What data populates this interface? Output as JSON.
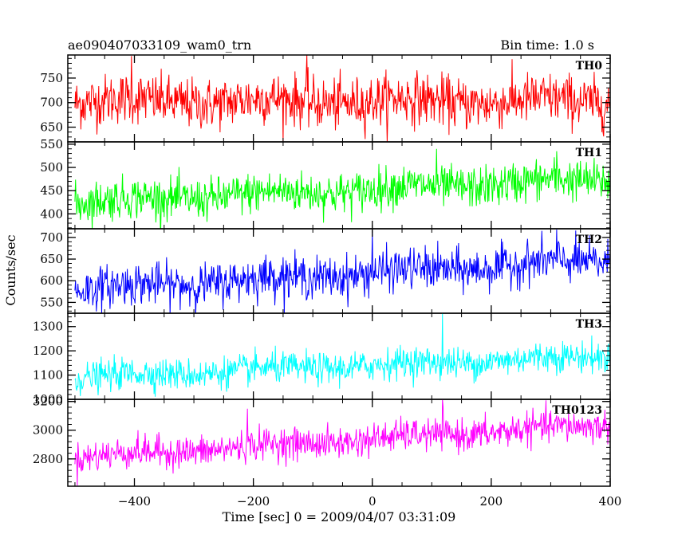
{
  "header": {
    "left_title": "ae090407033109_wam0_trn",
    "right_title": "Bin time: 1.0 s"
  },
  "chart_data": {
    "type": "line",
    "title": "ae090407033109_wam0_trn",
    "subtitle": "Bin time: 1.0 s",
    "xlabel": "Time [sec] 0 = 2009/04/07 03:31:09",
    "ylabel": "Counts/sec",
    "xlim": [
      -512,
      400
    ],
    "x_range_of_data": [
      -500,
      400
    ],
    "x_step": 1,
    "xticks": [
      -400,
      -200,
      0,
      200,
      400
    ],
    "xtick_labels": [
      "−400",
      "−200",
      "0",
      "200",
      "400"
    ],
    "grid": false,
    "panels": [
      {
        "name": "TH0",
        "color": "#ff0000",
        "ylim": [
          620,
          797
        ],
        "yticks": [
          650,
          700,
          750
        ],
        "ytick_labels": [
          "650",
          "700",
          "750"
        ],
        "trend_start": 703,
        "trend_end": 703,
        "noise_sd": 26,
        "spikes": [
          {
            "x": -405,
            "y": 795
          },
          {
            "x": -110,
            "y": 797
          }
        ]
      },
      {
        "name": "TH1",
        "color": "#00ff00",
        "ylim": [
          368,
          555
        ],
        "yticks": [
          400,
          450,
          500,
          550
        ],
        "ytick_labels": [
          "400",
          "450",
          "500",
          "550"
        ],
        "trend_start": 425,
        "trend_end": 475,
        "noise_sd": 22,
        "spikes": [
          {
            "x": 108,
            "y": 540
          },
          {
            "x": 310,
            "y": 535
          }
        ]
      },
      {
        "name": "TH2",
        "color": "#0000ff",
        "ylim": [
          525,
          720
        ],
        "yticks": [
          550,
          600,
          650,
          700
        ],
        "ytick_labels": [
          "550",
          "600",
          "650",
          "700"
        ],
        "trend_start": 580,
        "trend_end": 648,
        "noise_sd": 24,
        "spikes": [
          {
            "x": 0,
            "y": 715
          },
          {
            "x": 310,
            "y": 718
          }
        ]
      },
      {
        "name": "TH3",
        "color": "#00ffff",
        "ylim": [
          1000,
          1355
        ],
        "yticks": [
          1000,
          1100,
          1200,
          1300
        ],
        "ytick_labels": [
          "1000",
          "1100",
          "1200",
          "1300"
        ],
        "trend_start": 1090,
        "trend_end": 1180,
        "noise_sd": 32,
        "spikes": [
          {
            "x": 118,
            "y": 1355
          }
        ]
      },
      {
        "name": "TH0123",
        "color": "#ff00ff",
        "ylim": [
          2610,
          3215
        ],
        "yticks": [
          2800,
          3000,
          3200
        ],
        "ytick_labels": [
          "2800",
          "3000",
          "3200"
        ],
        "trend_start": 2810,
        "trend_end": 3040,
        "noise_sd": 55,
        "spikes": [
          {
            "x": 118,
            "y": 3215
          },
          {
            "x": -210,
            "y": 3150
          }
        ]
      }
    ]
  }
}
